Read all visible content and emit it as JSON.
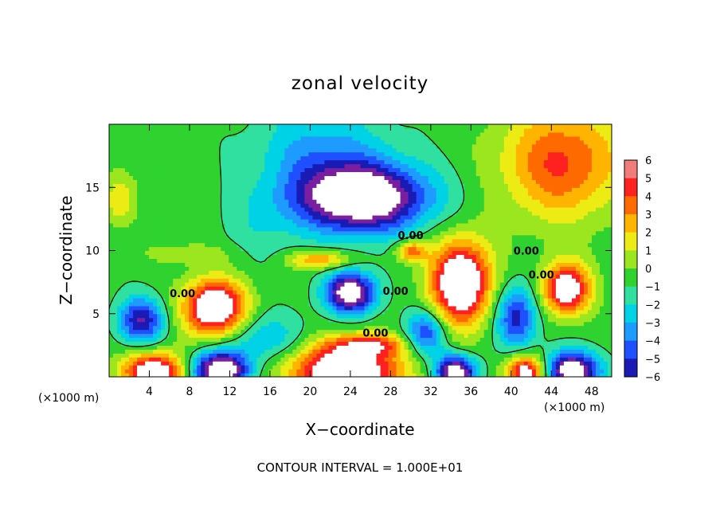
{
  "chart_data": {
    "type": "heatmap",
    "title": "zonal velocity",
    "xlabel": "X−coordinate",
    "ylabel": "Z−coordinate",
    "x_unit_left": "(×1000 m)",
    "x_unit_right": "(×1000 m)",
    "xlim": [
      0,
      50
    ],
    "ylim": [
      0,
      20
    ],
    "xticks": [
      4,
      8,
      12,
      16,
      20,
      24,
      28,
      32,
      36,
      40,
      44,
      48
    ],
    "xtick_labels": [
      "4",
      "8",
      "12",
      "16",
      "20",
      "24",
      "28",
      "32",
      "36",
      "40",
      "44",
      "48"
    ],
    "yticks": [
      5,
      10,
      15
    ],
    "ytick_labels": [
      "5",
      "10",
      "15"
    ],
    "colorbar": {
      "min": -6,
      "max": 6,
      "tick_values": [
        6,
        5,
        4,
        3,
        2,
        1,
        0,
        -1,
        -2,
        -3,
        -4,
        -5,
        -6
      ],
      "tick_labels": [
        "6",
        "5",
        "4",
        "3",
        "2",
        "1",
        "0",
        "−1",
        "−2",
        "−3",
        "−4",
        "−5",
        "−6"
      ]
    },
    "contour_labels": [
      {
        "text": "0.00",
        "x": 30.0,
        "z": 10.9
      },
      {
        "text": "0.00",
        "x": 41.5,
        "z": 9.7
      },
      {
        "text": "0.00",
        "x": 7.3,
        "z": 6.3
      },
      {
        "text": "0.00",
        "x": 28.5,
        "z": 6.5
      },
      {
        "text": "0.00",
        "x": 43.0,
        "z": 7.8
      },
      {
        "text": "0.00",
        "x": 26.5,
        "z": 3.2
      }
    ],
    "field_features": [
      {
        "kind": "min",
        "x": 25.0,
        "z": 14.2,
        "rx": 6.5,
        "rz": 2.7,
        "amp": -9.0
      },
      {
        "kind": "max",
        "x": 10.5,
        "z": 5.5,
        "rx": 3.0,
        "rz": 2.2,
        "amp": 8.5
      },
      {
        "kind": "max",
        "x": 35.0,
        "z": 7.5,
        "rx": 3.0,
        "rz": 3.3,
        "amp": 8.5
      },
      {
        "kind": "max",
        "x": 45.5,
        "z": 7.0,
        "rx": 2.3,
        "rz": 2.0,
        "amp": 7.5
      },
      {
        "kind": "min",
        "x": 24.0,
        "z": 6.7,
        "rx": 2.5,
        "rz": 1.6,
        "amp": -8.0
      },
      {
        "kind": "min",
        "x": 3.2,
        "z": 4.5,
        "rx": 2.2,
        "rz": 1.8,
        "amp": -5.5
      },
      {
        "kind": "min",
        "x": 40.5,
        "z": 4.8,
        "rx": 2.0,
        "rz": 2.5,
        "amp": -5.0
      },
      {
        "kind": "min",
        "x": 31.5,
        "z": 3.5,
        "rx": 2.0,
        "rz": 1.8,
        "amp": -4.5
      },
      {
        "kind": "max",
        "x": 4.5,
        "z": 0.4,
        "rx": 3.0,
        "rz": 1.5,
        "amp": 8.0
      },
      {
        "kind": "min",
        "x": 11.0,
        "z": 0.5,
        "rx": 2.8,
        "rz": 1.5,
        "amp": -8.5
      },
      {
        "kind": "max",
        "x": 23.5,
        "z": 0.5,
        "rx": 5.5,
        "rz": 2.2,
        "amp": 8.5
      },
      {
        "kind": "min",
        "x": 34.5,
        "z": 0.4,
        "rx": 2.0,
        "rz": 1.3,
        "amp": -8.0
      },
      {
        "kind": "max",
        "x": 41.5,
        "z": 0.4,
        "rx": 2.0,
        "rz": 1.3,
        "amp": 7.5
      },
      {
        "kind": "min",
        "x": 46.0,
        "z": 0.5,
        "rx": 2.8,
        "rz": 1.5,
        "amp": -8.0
      },
      {
        "kind": "max",
        "x": 45.0,
        "z": 17.0,
        "rx": 6.0,
        "rz": 4.5,
        "amp": 4.8
      },
      {
        "kind": "max",
        "x": 30.0,
        "z": 10.0,
        "rx": 1.5,
        "rz": 0.8,
        "amp": 4.5
      },
      {
        "kind": "max",
        "x": 21.0,
        "z": 9.3,
        "rx": 3.0,
        "rz": 0.7,
        "amp": 4.0
      },
      {
        "kind": "min",
        "x": 21.0,
        "z": 18.0,
        "rx": 6.5,
        "rz": 3.5,
        "amp": -2.5
      },
      {
        "kind": "max",
        "x": 26.0,
        "z": 2.6,
        "rx": 3.5,
        "rz": 0.8,
        "amp": 4.0
      },
      {
        "kind": "min",
        "x": 15.5,
        "z": 3.0,
        "rx": 4.0,
        "rz": 2.0,
        "amp": -2.5
      },
      {
        "kind": "max",
        "x": 1.0,
        "z": 14.0,
        "rx": 1.5,
        "rz": 2.0,
        "amp": 2.5
      },
      {
        "kind": "max",
        "x": 8.0,
        "z": 9.8,
        "rx": 4.0,
        "rz": 0.8,
        "amp": 1.5
      },
      {
        "kind": "min",
        "x": 15.0,
        "z": 12.0,
        "rx": 4.0,
        "rz": 3.0,
        "amp": -1.0
      }
    ]
  },
  "footer": {
    "text": "CONTOUR INTERVAL = 1.000E+01"
  }
}
